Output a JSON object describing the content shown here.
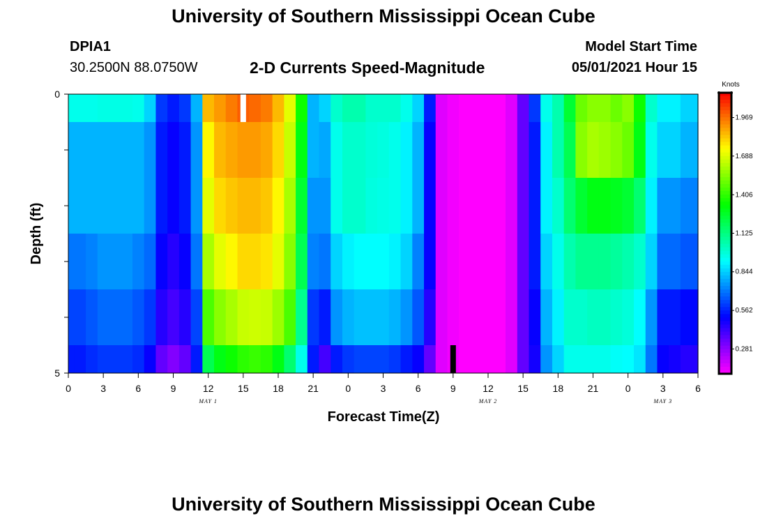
{
  "header": {
    "title": "University of Southern Mississippi Ocean Cube",
    "footer_title": "University of Southern Mississippi Ocean Cube",
    "station": "DPIA1",
    "coords": "30.2500N  88.0750W",
    "subtitle": "2-D Currents Speed-Magnitude",
    "model_start_label": "Model Start Time",
    "model_start_value": "05/01/2021 Hour 15"
  },
  "chart_data": {
    "type": "heatmap",
    "title": "2-D Currents Speed-Magnitude",
    "xlabel": "Forecast Time(Z)",
    "ylabel": "Depth (ft)",
    "x_tick_labels": [
      "0",
      "3",
      "6",
      "9",
      "12",
      "15",
      "18",
      "21",
      "0",
      "3",
      "6",
      "9",
      "12",
      "15",
      "18",
      "21",
      "0",
      "3",
      "6"
    ],
    "x_range_hours": [
      0,
      54
    ],
    "date_labels": [
      {
        "text": "MAY 1",
        "hour": 12
      },
      {
        "text": "MAY 2",
        "hour": 36
      },
      {
        "text": "MAY 3",
        "hour": 51
      }
    ],
    "y_tick_labels": [
      "0",
      "5"
    ],
    "ylim": [
      0,
      5
    ],
    "y_minor_ticks": 4,
    "hours": [
      0,
      1,
      2,
      3,
      4,
      5,
      6,
      7,
      8,
      9,
      10,
      11,
      12,
      13,
      14,
      15,
      16,
      17,
      18,
      19,
      20,
      21,
      22,
      23,
      24,
      25,
      26,
      27,
      28,
      29,
      30,
      31,
      32,
      33,
      34,
      35,
      36,
      37,
      38,
      39,
      40,
      41,
      42,
      43,
      44,
      45,
      46,
      47,
      48,
      49,
      50,
      51,
      52,
      53,
      54
    ],
    "depth_rows": [
      {
        "depth_range": [
          0.0,
          0.5
        ],
        "speeds": [
          0.95,
          0.95,
          0.95,
          0.96,
          0.96,
          0.96,
          0.95,
          0.85,
          0.6,
          0.55,
          0.6,
          0.8,
          1.85,
          1.9,
          1.95,
          2.0,
          1.98,
          1.95,
          1.85,
          1.7,
          1.35,
          0.8,
          0.85,
          1.0,
          1.05,
          1.05,
          1.0,
          1.0,
          1.0,
          0.95,
          0.85,
          0.55,
          0.15,
          0.12,
          0.1,
          0.1,
          0.1,
          0.1,
          0.15,
          0.35,
          0.6,
          0.95,
          1.05,
          1.25,
          1.5,
          1.55,
          1.55,
          1.5,
          1.55,
          1.35,
          1.0,
          0.9,
          0.9,
          0.85,
          0.85
        ]
      },
      {
        "depth_range": [
          0.5,
          1.5
        ],
        "speeds": [
          0.8,
          0.8,
          0.8,
          0.8,
          0.8,
          0.8,
          0.8,
          0.75,
          0.55,
          0.5,
          0.55,
          0.75,
          1.75,
          1.85,
          1.88,
          1.9,
          1.9,
          1.88,
          1.8,
          1.65,
          1.3,
          0.8,
          0.78,
          0.95,
          1.0,
          1.0,
          0.98,
          0.97,
          0.95,
          0.9,
          0.8,
          0.5,
          0.15,
          0.12,
          0.1,
          0.1,
          0.1,
          0.1,
          0.15,
          0.35,
          0.55,
          0.9,
          1.05,
          1.2,
          1.55,
          1.6,
          1.58,
          1.55,
          1.5,
          1.3,
          0.95,
          0.85,
          0.85,
          0.8,
          0.8
        ]
      },
      {
        "depth_range": [
          1.5,
          2.5
        ],
        "speeds": [
          0.8,
          0.8,
          0.8,
          0.8,
          0.8,
          0.8,
          0.8,
          0.75,
          0.55,
          0.5,
          0.55,
          0.75,
          1.7,
          1.8,
          1.83,
          1.85,
          1.85,
          1.83,
          1.75,
          1.6,
          1.25,
          0.75,
          0.75,
          0.95,
          1.0,
          1.0,
          0.97,
          0.96,
          0.95,
          0.9,
          0.8,
          0.5,
          0.15,
          0.12,
          0.1,
          0.1,
          0.1,
          0.1,
          0.15,
          0.35,
          0.55,
          0.9,
          1.0,
          1.15,
          1.25,
          1.3,
          1.3,
          1.28,
          1.25,
          1.15,
          0.9,
          0.75,
          0.75,
          0.72,
          0.72
        ]
      },
      {
        "depth_range": [
          2.5,
          3.5
        ],
        "speeds": [
          0.7,
          0.7,
          0.72,
          0.75,
          0.75,
          0.75,
          0.72,
          0.68,
          0.5,
          0.45,
          0.5,
          0.7,
          1.6,
          1.7,
          1.75,
          1.8,
          1.8,
          1.78,
          1.7,
          1.55,
          1.2,
          0.72,
          0.7,
          0.85,
          0.9,
          0.92,
          0.92,
          0.92,
          0.9,
          0.85,
          0.72,
          0.5,
          0.15,
          0.12,
          0.1,
          0.1,
          0.1,
          0.1,
          0.15,
          0.35,
          0.55,
          0.85,
          0.95,
          1.05,
          1.1,
          1.1,
          1.1,
          1.08,
          1.05,
          1.0,
          0.85,
          0.68,
          0.68,
          0.65,
          0.65
        ]
      },
      {
        "depth_range": [
          3.5,
          4.5
        ],
        "speeds": [
          0.62,
          0.62,
          0.65,
          0.68,
          0.68,
          0.68,
          0.65,
          0.6,
          0.45,
          0.4,
          0.45,
          0.62,
          1.45,
          1.55,
          1.6,
          1.65,
          1.66,
          1.65,
          1.58,
          1.45,
          1.1,
          0.6,
          0.55,
          0.75,
          0.8,
          0.82,
          0.82,
          0.82,
          0.8,
          0.75,
          0.65,
          0.45,
          0.15,
          0.12,
          0.1,
          0.1,
          0.1,
          0.1,
          0.15,
          0.35,
          0.5,
          0.8,
          0.9,
          1.0,
          1.0,
          1.02,
          1.02,
          1.0,
          0.98,
          0.92,
          0.75,
          0.55,
          0.55,
          0.52,
          0.52
        ]
      },
      {
        "depth_range": [
          4.5,
          5.0
        ],
        "speeds": [
          0.55,
          0.55,
          0.58,
          0.6,
          0.6,
          0.6,
          0.58,
          0.5,
          0.35,
          0.3,
          0.35,
          0.55,
          1.2,
          1.3,
          1.35,
          1.4,
          1.42,
          1.4,
          1.3,
          1.15,
          0.95,
          0.55,
          0.4,
          0.55,
          0.6,
          0.62,
          0.62,
          0.62,
          0.6,
          0.55,
          0.5,
          0.35,
          0.15,
          0.12,
          0.1,
          0.1,
          0.1,
          0.1,
          0.15,
          0.35,
          0.48,
          0.75,
          0.85,
          0.95,
          0.95,
          0.95,
          0.95,
          0.93,
          0.92,
          0.88,
          0.7,
          0.5,
          0.48,
          0.45,
          0.45
        ]
      }
    ],
    "markers": [
      {
        "color": "#ffffff",
        "hour": 15,
        "depth_range": [
          0,
          0.5
        ]
      },
      {
        "color": "#000000",
        "hour": 33,
        "depth_range": [
          4.5,
          5.0
        ]
      }
    ],
    "colorbar": {
      "label": "Knots",
      "ticks": [
        "1.969",
        "1.688",
        "1.406",
        "1.125",
        "0.844",
        "0.562",
        "0.281"
      ],
      "range": [
        0.1,
        2.15
      ]
    }
  }
}
